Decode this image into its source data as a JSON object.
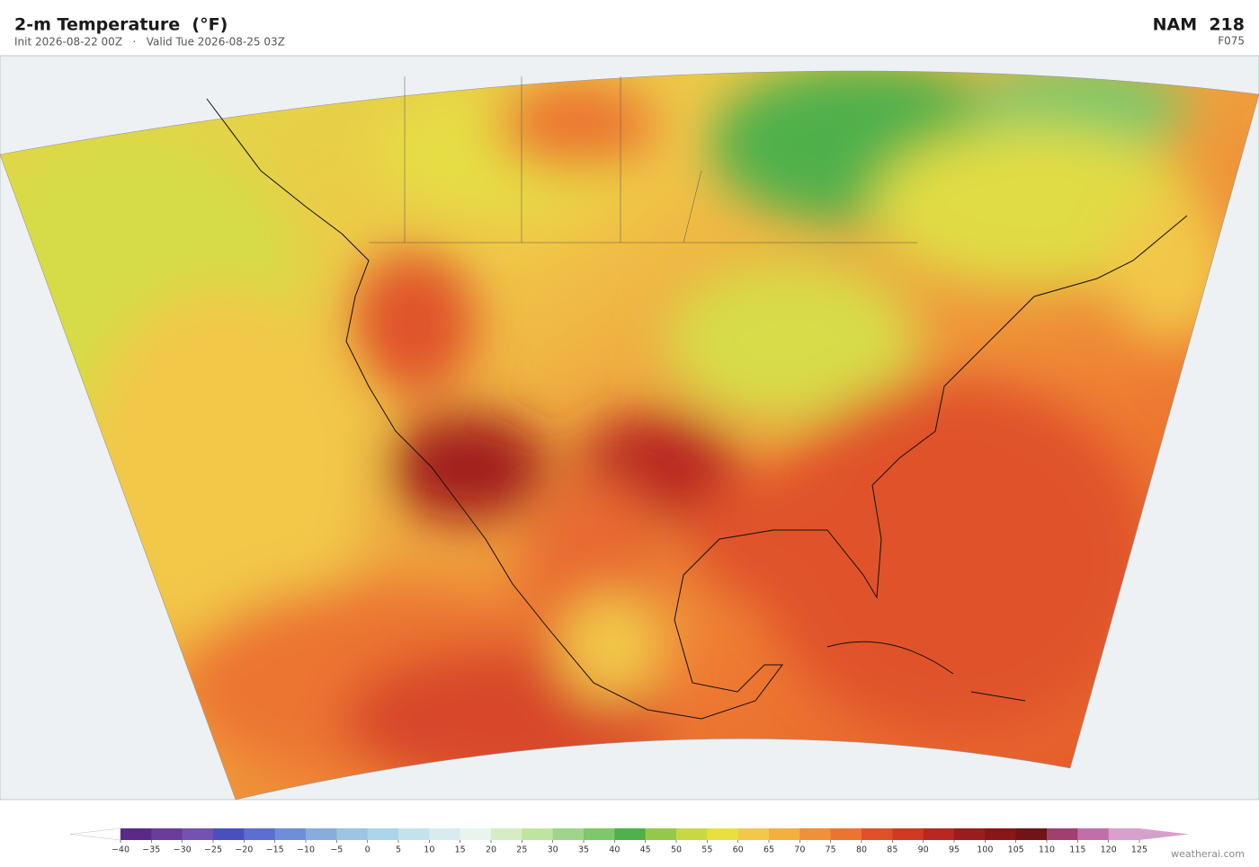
{
  "header": {
    "title": "2-m Temperature  (°F)",
    "subtitle": "Init 2026-08-22 00Z   ·   Valid Tue 2026-08-25 03Z",
    "model": "NAM  218",
    "forecast_hour": "F075"
  },
  "colorbar": {
    "ticks": [
      {
        "value": -40,
        "label": "−40"
      },
      {
        "value": -35,
        "label": "−35"
      },
      {
        "value": -30,
        "label": "−30"
      },
      {
        "value": -25,
        "label": "−25"
      },
      {
        "value": -20,
        "label": "−20"
      },
      {
        "value": -15,
        "label": "−15"
      },
      {
        "value": -10,
        "label": "−10"
      },
      {
        "value": -5,
        "label": "−5"
      },
      0,
      5,
      10,
      15,
      20,
      25,
      30,
      35,
      40,
      45,
      50,
      55,
      60,
      65,
      70,
      75,
      80,
      85,
      90,
      95,
      100,
      105,
      110,
      115,
      120,
      125
    ],
    "colors": [
      "#5b2a86",
      "#6a3d9a",
      "#7352b0",
      "#4a4fc0",
      "#5a6fd0",
      "#6e8fd8",
      "#88acdc",
      "#9cc4e4",
      "#acd4ea",
      "#c4e2ee",
      "#d8ecf0",
      "#e8f4ec",
      "#d6ecc6",
      "#bfe4a0",
      "#9ed58a",
      "#7cc86a",
      "#50b04c",
      "#94c84a",
      "#c8d844",
      "#e8e040",
      "#f2c84a",
      "#f2b040",
      "#f09038",
      "#ec7430",
      "#e0502a",
      "#d03a24",
      "#b82820",
      "#9a1c1c",
      "#861818",
      "#701418",
      "#a04070",
      "#c070a8",
      "#d8a0cc"
    ],
    "under_color": "#ffffff",
    "over_color": "#d8a0cc"
  },
  "watermark": "weatherai.com"
}
